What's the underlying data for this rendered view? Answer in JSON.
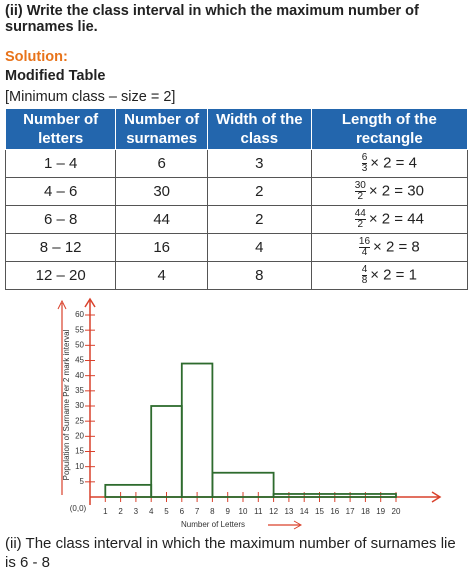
{
  "question": "(ii) Write the class interval in which the maximum number of surnames lie.",
  "solution_label": "Solution:",
  "subtitle": "Modified Table",
  "note": "[Minimum class – size = 2]",
  "table": {
    "headers": [
      "Number of letters",
      "Number of surnames",
      "Width of the class",
      "Length of the rectangle"
    ],
    "rows": [
      [
        "1 – 4",
        "6",
        "3",
        {
          "num": "6",
          "den": "3",
          "rest": "× 2 = 4"
        }
      ],
      [
        "4 – 6",
        "30",
        "2",
        {
          "num": "30",
          "den": "2",
          "rest": "× 2 = 30"
        }
      ],
      [
        "6 – 8",
        "44",
        "2",
        {
          "num": "44",
          "den": "2",
          "rest": "× 2 = 44"
        }
      ],
      [
        "8 – 12",
        "16",
        "4",
        {
          "num": "16",
          "den": "4",
          "rest": "× 2 = 8"
        }
      ],
      [
        "12 – 20",
        "4",
        "8",
        {
          "num": "4",
          "den": "8",
          "rest": "× 2 = 1"
        }
      ]
    ]
  },
  "chart_data": {
    "type": "histogram",
    "x_label": "Number of Letters",
    "y_label": "Population of Surname Per 2 mark interval",
    "origin_label": "(0,0)",
    "bins": [
      1,
      4,
      6,
      8,
      12,
      20
    ],
    "values": [
      4,
      30,
      44,
      8,
      1
    ],
    "color": "#2e6b2e",
    "axis_color": "#d9412b",
    "xlim": [
      0,
      20
    ],
    "xticks": [
      1,
      2,
      3,
      4,
      5,
      6,
      7,
      8,
      9,
      10,
      11,
      12,
      13,
      14,
      15,
      16,
      17,
      18,
      19,
      20
    ],
    "ylim": [
      0,
      60
    ],
    "yticks": [
      5,
      10,
      15,
      20,
      25,
      30,
      35,
      40,
      45,
      50,
      55,
      60
    ]
  },
  "answer": "(ii) The class interval in which the maximum number of surnames lie is 6 - 8"
}
